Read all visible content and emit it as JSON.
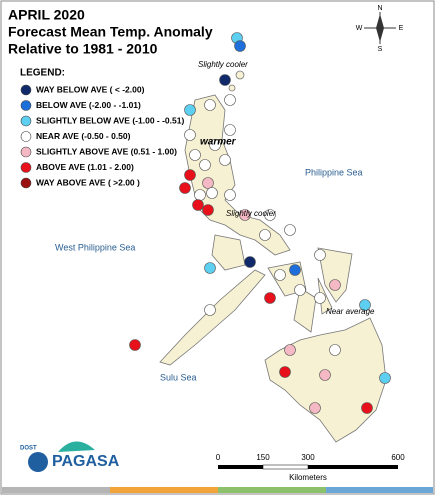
{
  "header": {
    "title": [
      "APRIL 2020",
      "Forecast Mean Temp. Anomaly",
      "Relative to 1981 - 2010"
    ]
  },
  "legend": {
    "title": "LEGEND:",
    "items": [
      {
        "label": "WAY BELOW AVE ( < -2.00)",
        "color": "#10296b"
      },
      {
        "label": "BELOW AVE (-2.00 - -1.01)",
        "color": "#1f6fdb"
      },
      {
        "label": "SLIGHTLY BELOW AVE (-1.00 - -0.51)",
        "color": "#5dd0f2"
      },
      {
        "label": "NEAR AVE (-0.50 - 0.50)",
        "color": "#ffffff"
      },
      {
        "label": "SLIGHTLY ABOVE AVE (0.51 - 1.00)",
        "color": "#f5b9c5"
      },
      {
        "label": "ABOVE AVE (1.01 - 2.00)",
        "color": "#e8101a"
      },
      {
        "label": "WAY ABOVE AVE ( >2.00 )",
        "color": "#9b1010"
      }
    ]
  },
  "annotations": [
    "Slightly cooler",
    "warmer",
    "Slightly cooler",
    "Near average"
  ],
  "seas": [
    "Philippine Sea",
    "West Philippine Sea",
    "Sulu Sea"
  ],
  "compass": [
    "N",
    "E",
    "S",
    "W"
  ],
  "scale": {
    "ticks": [
      "0",
      "150",
      "300",
      "600"
    ],
    "unit": "Kilometers"
  },
  "logo": {
    "agency": "PAGASA",
    "dept": "DOST"
  }
}
